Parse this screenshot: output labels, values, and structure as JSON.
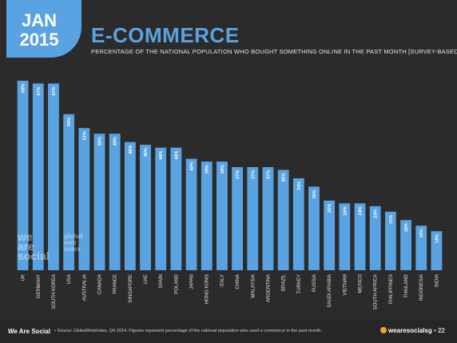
{
  "header": {
    "month": "JAN",
    "year": "2015",
    "title": "E-COMMERCE",
    "subtitle": "PERCENTAGE OF THE NATIONAL POPULATION WHO BOUGHT SOMETHING ONLINE IN THE PAST MONTH [SURVEY-BASED]"
  },
  "colors": {
    "bar": "#5aa3e3",
    "background": "#2b2b2b",
    "accent": "#5aa3e3"
  },
  "watermark": {
    "logo_text_1": "we",
    "logo_text_2": "are",
    "logo_text_3": "social",
    "gwi_text_1": "global",
    "gwi_text_2": "web",
    "gwi_text_3": "index"
  },
  "footer": {
    "brand": "We Are Social",
    "source": "• Source: GlobalWebIndex, Q4 2014. Figures represent percentage of the national population who used e-commerce in the past month.",
    "handle": "wearesocialsg",
    "page": "• 22"
  },
  "chart_data": {
    "type": "bar",
    "categories": [
      "UK",
      "GERMANY",
      "SOUTH KOREA",
      "USA",
      "AUSTRALIA",
      "CANADA",
      "FRANCE",
      "SINGAPORE",
      "UAE",
      "SPAIN",
      "POLAND",
      "JAPAN",
      "HONG KONG",
      "ITALY",
      "CHINA",
      "MALAYSIA",
      "ARGENTINA",
      "BRAZIL",
      "TURKEY",
      "RUSSIA",
      "SAUDI ARABIA",
      "VIETNAM",
      "MEXICO",
      "SOUTH AFRICA",
      "PHILIPPINES",
      "THAILAND",
      "INDONESIA",
      "INDIA"
    ],
    "values": [
      68,
      67,
      67,
      56,
      51,
      49,
      49,
      46,
      45,
      44,
      44,
      40,
      39,
      39,
      37,
      37,
      37,
      36,
      33,
      30,
      25,
      24,
      24,
      23,
      21,
      18,
      16,
      14
    ],
    "value_labels": [
      "68%",
      "67%",
      "67%",
      "56%",
      "51%",
      "49%",
      "49%",
      "46%",
      "45%",
      "44%",
      "44%",
      "40%",
      "39%",
      "39%",
      "37%",
      "37%",
      "37%",
      "36%",
      "33%",
      "30%",
      "25%",
      "24%",
      "24%",
      "23%",
      "21%",
      "18%",
      "16%",
      "14%"
    ],
    "ylim": [
      0,
      70
    ],
    "grid": false,
    "legend": "none"
  }
}
